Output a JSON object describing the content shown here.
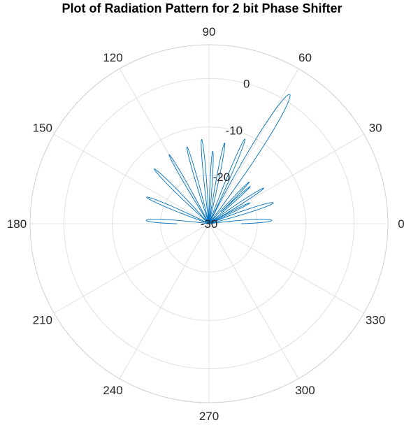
{
  "chart_data": {
    "type": "polar-line",
    "title": "Plot of Radiation Pattern for 2 bit Phase Shifter",
    "theta_tick_labels": [
      "0",
      "30",
      "60",
      "90",
      "120",
      "150",
      "180",
      "210",
      "240",
      "270",
      "300",
      "330"
    ],
    "theta_ticks_deg": [
      0,
      30,
      60,
      90,
      120,
      150,
      180,
      210,
      240,
      270,
      300,
      330
    ],
    "r_tick_labels": [
      "-30",
      "-20",
      "-10",
      "0"
    ],
    "r_ticks": [
      -30,
      -20,
      -10,
      0
    ],
    "rlim": [
      -30,
      7
    ],
    "theta_range_deg": [
      0,
      180
    ],
    "grid": true,
    "series": [
      {
        "color": "#0072bd",
        "lobes": [
          {
            "angle_deg": 3,
            "peak_db": -17,
            "width_deg": 8
          },
          {
            "angle_deg": 18,
            "peak_db": -16,
            "width_deg": 7
          },
          {
            "angle_deg": 27,
            "peak_db": -20.5,
            "width_deg": 5
          },
          {
            "angle_deg": 33,
            "peak_db": -16.5,
            "width_deg": 5
          },
          {
            "angle_deg": 42,
            "peak_db": -18.5,
            "width_deg": 4
          },
          {
            "angle_deg": 46,
            "peak_db": -18,
            "width_deg": 4
          },
          {
            "angle_deg": 58,
            "peak_db": 1.5,
            "width_deg": 6
          },
          {
            "angle_deg": 67,
            "peak_db": -11,
            "width_deg": 4
          },
          {
            "angle_deg": 79,
            "peak_db": -13,
            "width_deg": 4
          },
          {
            "angle_deg": 87,
            "peak_db": -15,
            "width_deg": 4
          },
          {
            "angle_deg": 95,
            "peak_db": -12.5,
            "width_deg": 4
          },
          {
            "angle_deg": 106,
            "peak_db": -13.5,
            "width_deg": 4
          },
          {
            "angle_deg": 120,
            "peak_db": -13.5,
            "width_deg": 4
          },
          {
            "angle_deg": 135,
            "peak_db": -14,
            "width_deg": 5
          },
          {
            "angle_deg": 157,
            "peak_db": -16,
            "width_deg": 6
          },
          {
            "angle_deg": 177,
            "peak_db": -17,
            "width_deg": 8
          }
        ]
      }
    ]
  }
}
